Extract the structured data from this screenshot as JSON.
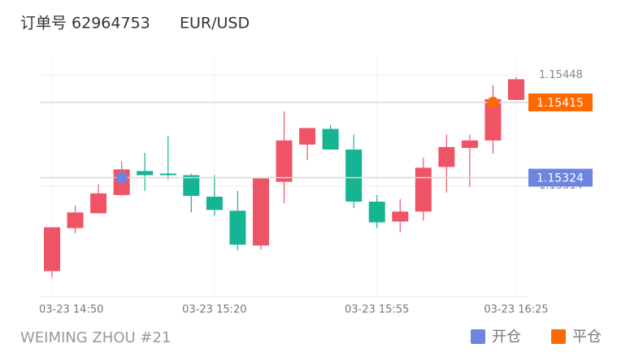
{
  "header": {
    "order": "订单号 62964753",
    "symbol": "EUR/USD"
  },
  "chart_data": {
    "type": "candlestick",
    "categories": [
      "03-23 14:50",
      null,
      null,
      null,
      null,
      null,
      null,
      "03-23 15:20",
      null,
      null,
      null,
      null,
      null,
      null,
      "03-23 15:55",
      null,
      null,
      null,
      null,
      null,
      "03-23 16:25"
    ],
    "open": [
      1.15211,
      1.15263,
      1.15281,
      1.15303,
      1.15332,
      1.15329,
      1.15327,
      1.15301,
      1.15284,
      1.15242,
      1.15319,
      1.15364,
      1.15383,
      1.15358,
      1.15295,
      1.15271,
      1.15283,
      1.15337,
      1.1536,
      1.15369,
      1.15418
    ],
    "high": [
      1.15264,
      1.1529,
      1.15316,
      1.15344,
      1.15354,
      1.15374,
      1.15329,
      1.15327,
      1.15308,
      1.15323,
      1.15404,
      1.15384,
      1.15388,
      1.15376,
      1.15303,
      1.15298,
      1.15348,
      1.15376,
      1.15376,
      1.15436,
      1.15446
    ],
    "low": [
      1.15203,
      1.15257,
      1.15281,
      1.15302,
      1.15308,
      1.15322,
      1.15282,
      1.15278,
      1.15236,
      1.15237,
      1.15293,
      1.15345,
      1.15358,
      1.15287,
      1.15263,
      1.15258,
      1.15272,
      1.15306,
      1.15313,
      1.15353,
      1.15418
    ],
    "close": [
      1.15264,
      1.15282,
      1.15305,
      1.15334,
      1.15327,
      1.15327,
      1.15302,
      1.15285,
      1.15243,
      1.15323,
      1.15369,
      1.15384,
      1.15358,
      1.15295,
      1.1527,
      1.15283,
      1.15336,
      1.15361,
      1.15369,
      1.15419,
      1.15443
    ],
    "up_color": "#ef5466",
    "down_color": "#15b493",
    "ylim": [
      1.1518,
      1.1547
    ],
    "yticks": [
      1.15314,
      1.15448
    ],
    "grid": true,
    "markers": [
      {
        "name": "开仓",
        "color": "#6d84e0",
        "index": 3,
        "value": 1.15324
      },
      {
        "name": "平仓",
        "color": "#ff6a00",
        "index": 19,
        "value": 1.15415
      }
    ]
  },
  "footer": {
    "account": "WEIMING ZHOU #21"
  }
}
